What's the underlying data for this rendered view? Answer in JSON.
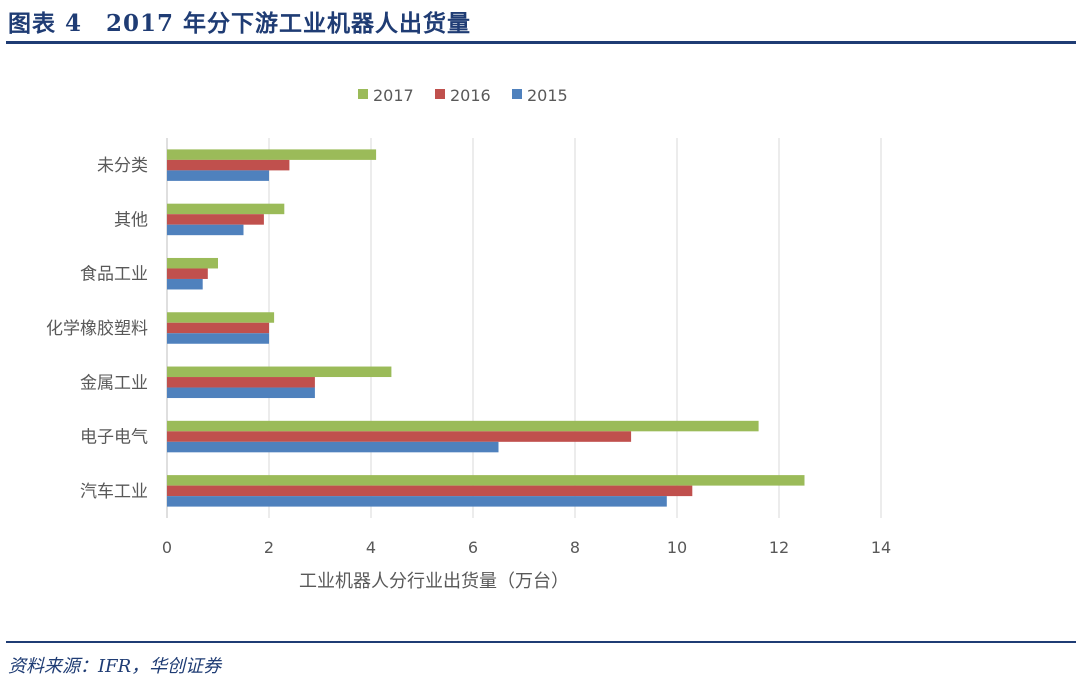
{
  "header": {
    "title": "图表 4　2017 年分下游工业机器人出货量"
  },
  "footer": {
    "source": "资料来源：IFR，华创证券"
  },
  "chart_data": {
    "type": "bar",
    "orientation": "horizontal",
    "title": "",
    "xlabel": "工业机器人分行业出货量（万台）",
    "ylabel": "",
    "xlim": [
      0,
      14
    ],
    "xticks": [
      0,
      2,
      4,
      6,
      8,
      10,
      12,
      14
    ],
    "grid": "vertical",
    "legend": "top",
    "categories": [
      "未分类",
      "其他",
      "食品工业",
      "化学橡胶塑料",
      "金属工业",
      "电子电气",
      "汽车工业"
    ],
    "series": [
      {
        "name": "2017",
        "color": "#9bbb59",
        "values": [
          4.1,
          2.3,
          1.0,
          2.1,
          4.4,
          11.6,
          12.5
        ]
      },
      {
        "name": "2016",
        "color": "#c0504d",
        "values": [
          2.4,
          1.9,
          0.8,
          2.0,
          2.9,
          9.1,
          10.3
        ]
      },
      {
        "name": "2015",
        "color": "#4f81bd",
        "values": [
          2.0,
          1.5,
          0.7,
          2.0,
          2.9,
          6.5,
          9.8
        ]
      }
    ]
  }
}
